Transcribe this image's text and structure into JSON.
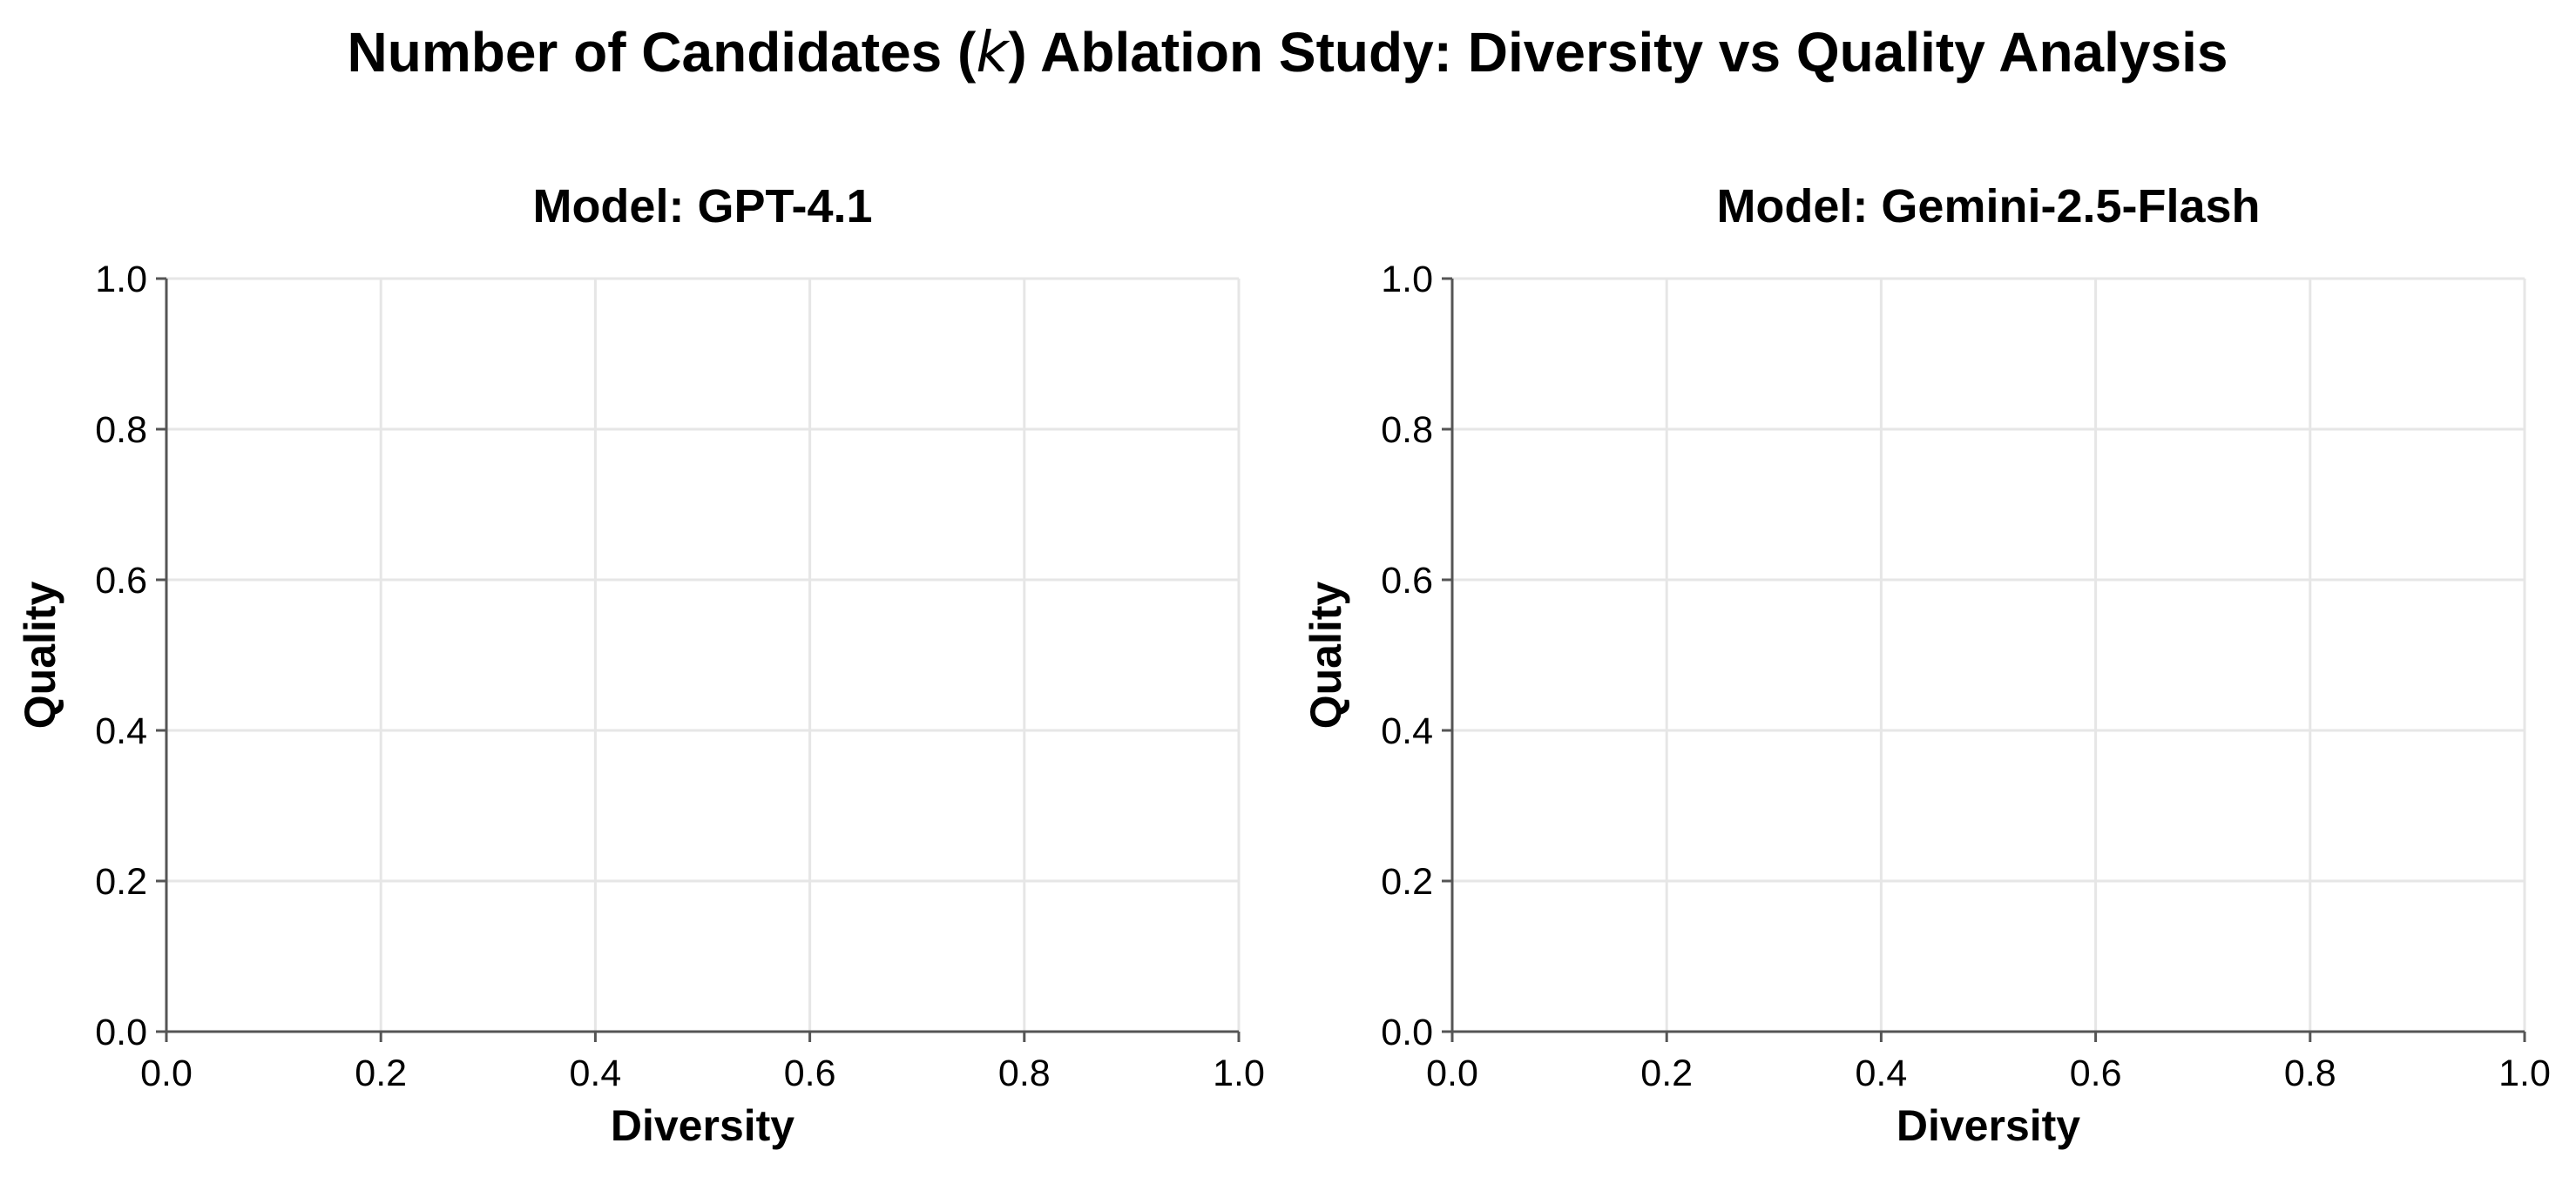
{
  "figure": {
    "title_prefix": "Number of Candidates (",
    "title_k": "k",
    "title_suffix": ") Ablation Study: Diversity vs Quality Analysis"
  },
  "chart_data": [
    {
      "type": "scatter",
      "title": "Model: GPT-4.1",
      "xlabel": "Diversity",
      "ylabel": "Quality",
      "xlim": [
        0.0,
        1.0
      ],
      "ylim": [
        0.0,
        1.0
      ],
      "xticks": [
        "0.0",
        "0.2",
        "0.4",
        "0.6",
        "0.8",
        "1.0"
      ],
      "yticks": [
        "0.0",
        "0.2",
        "0.4",
        "0.6",
        "0.8",
        "1.0"
      ],
      "grid": true,
      "series": []
    },
    {
      "type": "scatter",
      "title": "Model: Gemini-2.5-Flash",
      "xlabel": "Diversity",
      "ylabel": "Quality",
      "xlim": [
        0.0,
        1.0
      ],
      "ylim": [
        0.0,
        1.0
      ],
      "xticks": [
        "0.0",
        "0.2",
        "0.4",
        "0.6",
        "0.8",
        "1.0"
      ],
      "yticks": [
        "0.0",
        "0.2",
        "0.4",
        "0.6",
        "0.8",
        "1.0"
      ],
      "grid": true,
      "series": []
    }
  ]
}
